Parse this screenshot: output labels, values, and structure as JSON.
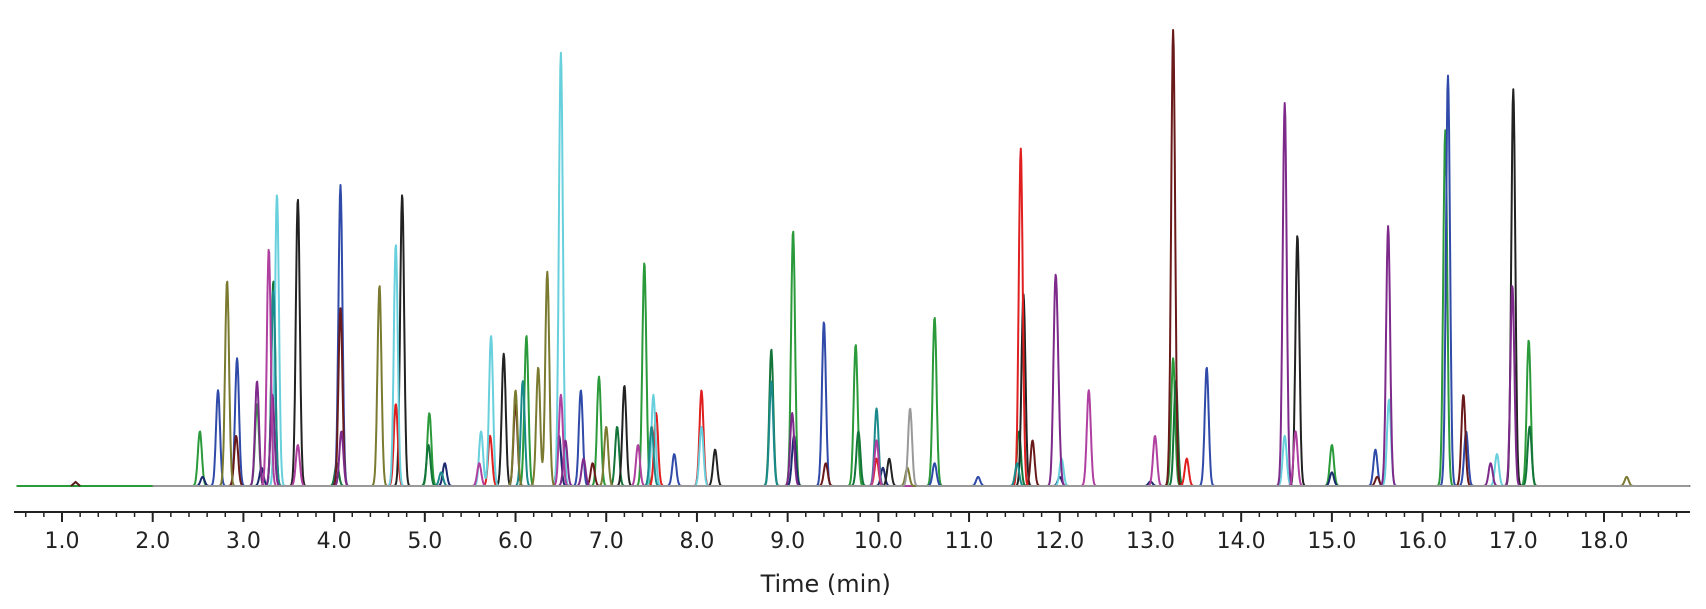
{
  "chart_data": {
    "type": "line",
    "title": "",
    "xlabel": "Time (min)",
    "ylabel": "",
    "xlim": [
      0.5,
      19.0
    ],
    "ylim": [
      0,
      1.0
    ],
    "x_ticks": [
      "1.0",
      "2.0",
      "3.0",
      "4.0",
      "5.0",
      "6.0",
      "7.0",
      "8.0",
      "9.0",
      "10.0",
      "11.0",
      "12.0",
      "13.0",
      "14.0",
      "15.0",
      "16.0",
      "17.0",
      "18.0"
    ],
    "x_tick_values": [
      1,
      2,
      3,
      4,
      5,
      6,
      7,
      8,
      9,
      10,
      11,
      12,
      13,
      14,
      15,
      16,
      17,
      18
    ],
    "minor_tick_step": 0.2,
    "grid": false,
    "legend": "none",
    "series": [
      {
        "color": "#2a9a3a",
        "peaks": [
          [
            2.52,
            0.12
          ],
          [
            3.15,
            0.18
          ],
          [
            5.05,
            0.16
          ],
          [
            6.12,
            0.33
          ],
          [
            6.92,
            0.24
          ],
          [
            7.42,
            0.49
          ],
          [
            9.06,
            0.56
          ],
          [
            9.75,
            0.31
          ],
          [
            10.62,
            0.37
          ],
          [
            13.25,
            0.28
          ],
          [
            15.0,
            0.09
          ],
          [
            16.25,
            0.78
          ],
          [
            17.17,
            0.32
          ]
        ]
      },
      {
        "color": "#14753a",
        "peaks": [
          [
            3.33,
            0.45
          ],
          [
            4.03,
            0.05
          ],
          [
            5.04,
            0.09
          ],
          [
            7.12,
            0.13
          ],
          [
            8.82,
            0.3
          ],
          [
            9.78,
            0.12
          ],
          [
            11.55,
            0.12
          ],
          [
            13.28,
            0.23
          ],
          [
            17.18,
            0.13
          ]
        ]
      },
      {
        "color": "#2f4aa8",
        "peaks": [
          [
            2.72,
            0.21
          ],
          [
            2.93,
            0.28
          ],
          [
            4.07,
            0.66
          ],
          [
            6.72,
            0.21
          ],
          [
            7.75,
            0.07
          ],
          [
            9.4,
            0.36
          ],
          [
            10.62,
            0.05
          ],
          [
            11.1,
            0.02
          ],
          [
            13.62,
            0.26
          ],
          [
            15.48,
            0.08
          ],
          [
            16.28,
            0.9
          ],
          [
            16.48,
            0.12
          ]
        ]
      },
      {
        "color": "#1c2a6e",
        "peaks": [
          [
            2.55,
            0.02
          ],
          [
            3.2,
            0.04
          ],
          [
            5.22,
            0.05
          ],
          [
            6.48,
            0.11
          ],
          [
            9.07,
            0.11
          ],
          [
            10.05,
            0.04
          ],
          [
            12.0,
            0.02
          ],
          [
            13.0,
            0.01
          ],
          [
            15.0,
            0.03
          ]
        ]
      },
      {
        "color": "#222222",
        "peaks": [
          [
            3.6,
            0.63
          ],
          [
            4.75,
            0.64
          ],
          [
            5.87,
            0.29
          ],
          [
            7.2,
            0.22
          ],
          [
            8.2,
            0.08
          ],
          [
            10.12,
            0.06
          ],
          [
            11.6,
            0.42
          ],
          [
            14.62,
            0.55
          ],
          [
            17.0,
            0.87
          ]
        ]
      },
      {
        "color": "#6a1a1a",
        "peaks": [
          [
            2.92,
            0.11
          ],
          [
            4.07,
            0.39
          ],
          [
            6.0,
            0.18
          ],
          [
            6.85,
            0.05
          ],
          [
            9.42,
            0.05
          ],
          [
            11.7,
            0.1
          ],
          [
            13.25,
            1.0
          ],
          [
            15.5,
            0.02
          ],
          [
            16.45,
            0.2
          ]
        ]
      },
      {
        "color": "#e02020",
        "peaks": [
          [
            4.68,
            0.18
          ],
          [
            5.72,
            0.11
          ],
          [
            7.55,
            0.16
          ],
          [
            8.05,
            0.21
          ],
          [
            9.98,
            0.06
          ],
          [
            11.57,
            0.74
          ],
          [
            13.4,
            0.06
          ]
        ]
      },
      {
        "color": "#68d0dc",
        "peaks": [
          [
            3.37,
            0.64
          ],
          [
            4.68,
            0.53
          ],
          [
            5.62,
            0.12
          ],
          [
            5.73,
            0.33
          ],
          [
            6.5,
            0.95
          ],
          [
            7.52,
            0.2
          ],
          [
            8.05,
            0.13
          ],
          [
            12.02,
            0.06
          ],
          [
            14.48,
            0.11
          ],
          [
            15.63,
            0.19
          ],
          [
            16.82,
            0.07
          ]
        ]
      },
      {
        "color": "#1a8a8a",
        "peaks": [
          [
            3.33,
            0.43
          ],
          [
            5.18,
            0.03
          ],
          [
            6.08,
            0.23
          ],
          [
            7.5,
            0.13
          ],
          [
            8.82,
            0.23
          ],
          [
            9.98,
            0.17
          ],
          [
            11.53,
            0.05
          ]
        ]
      },
      {
        "color": "#7d2a8a",
        "peaks": [
          [
            3.15,
            0.23
          ],
          [
            3.32,
            0.2
          ],
          [
            4.08,
            0.12
          ],
          [
            6.55,
            0.1
          ],
          [
            6.75,
            0.06
          ],
          [
            9.05,
            0.16
          ],
          [
            11.95,
            0.39
          ],
          [
            11.98,
            0.16
          ],
          [
            14.48,
            0.84
          ],
          [
            15.62,
            0.57
          ],
          [
            16.75,
            0.05
          ],
          [
            16.99,
            0.44
          ]
        ]
      },
      {
        "color": "#b040a0",
        "peaks": [
          [
            3.28,
            0.52
          ],
          [
            3.6,
            0.09
          ],
          [
            5.6,
            0.05
          ],
          [
            6.5,
            0.2
          ],
          [
            7.35,
            0.09
          ],
          [
            9.98,
            0.1
          ],
          [
            12.32,
            0.21
          ],
          [
            13.05,
            0.11
          ],
          [
            14.6,
            0.12
          ]
        ]
      },
      {
        "color": "#7a7a30",
        "peaks": [
          [
            2.82,
            0.45
          ],
          [
            4.5,
            0.44
          ],
          [
            6.0,
            0.21
          ],
          [
            6.25,
            0.26
          ],
          [
            6.35,
            0.47
          ],
          [
            7.0,
            0.13
          ],
          [
            10.32,
            0.04
          ],
          [
            18.25,
            0.02
          ]
        ]
      },
      {
        "color": "#999999",
        "peaks": [
          [
            10.35,
            0.17
          ]
        ]
      }
    ]
  }
}
